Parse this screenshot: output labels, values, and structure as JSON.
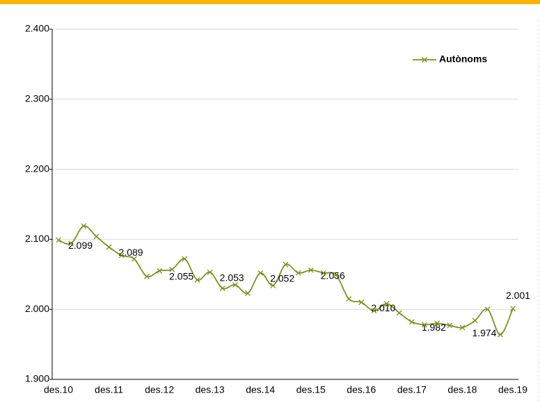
{
  "chart_data": {
    "type": "line",
    "categories": [
      "des.10",
      null,
      null,
      null,
      "des.11",
      null,
      null,
      null,
      "des.12",
      null,
      null,
      null,
      "des.13",
      null,
      null,
      null,
      "des.14",
      null,
      null,
      null,
      "des.15",
      null,
      null,
      null,
      "des.16",
      null,
      null,
      null,
      "des.17",
      null,
      null,
      null,
      "des.18",
      null,
      null,
      null,
      "des.19"
    ],
    "series": [
      {
        "name": "Autònoms",
        "color": "#7f8f1f",
        "values": [
          2099,
          2094,
          2119,
          2104,
          2089,
          2077,
          2072,
          2047,
          2055,
          2057,
          2072,
          2042,
          2053,
          2030,
          2035,
          2023,
          2052,
          2034,
          2064,
          2052,
          2056,
          2052,
          2049,
          2015,
          2010,
          1998,
          2008,
          1995,
          1982,
          1978,
          1980,
          1977,
          1974,
          1984,
          2000,
          1964,
          2001
        ],
        "value_labels": [
          "2.099",
          null,
          null,
          null,
          "2.089",
          null,
          null,
          null,
          "2.055",
          null,
          null,
          null,
          "2.053",
          null,
          null,
          null,
          "2.052",
          null,
          null,
          null,
          "2.056",
          null,
          null,
          null,
          "2.010",
          null,
          null,
          null,
          "1.982",
          null,
          null,
          null,
          "1.974",
          null,
          null,
          null,
          "2.001"
        ]
      }
    ],
    "ylim": [
      1900,
      2400
    ],
    "yticks": [
      {
        "value": 1900,
        "label": "1.900"
      },
      {
        "value": 2000,
        "label": "2.000"
      },
      {
        "value": 2100,
        "label": "2.100"
      },
      {
        "value": 2200,
        "label": "2.200"
      },
      {
        "value": 2300,
        "label": "2.300"
      },
      {
        "value": 2400,
        "label": "2.400"
      }
    ],
    "grid": true,
    "legend": "top-right"
  }
}
